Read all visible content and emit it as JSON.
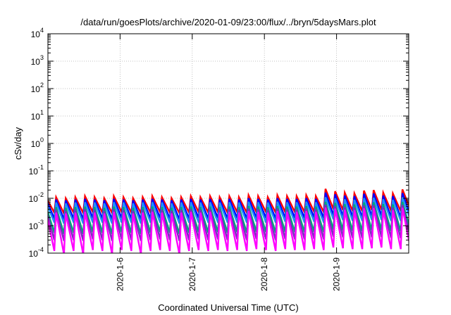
{
  "chart_data": {
    "type": "line",
    "title": "/data/run/goesPlots/archive/2020-01-09/23:00/flux/../bryn/5daysMars.plot",
    "xlabel": "Coordinated Universal Time (UTC)",
    "ylabel": "cSv/day",
    "yscale": "log",
    "ylim": [
      0.0001,
      10000
    ],
    "xlim": [
      "2020-01-05T00:00",
      "2020-01-10T00:00"
    ],
    "grid": true,
    "legend": "none",
    "y_ticks": [
      {
        "base": "10",
        "exp": "-4"
      },
      {
        "base": "10",
        "exp": "-3"
      },
      {
        "base": "10",
        "exp": "-2"
      },
      {
        "base": "10",
        "exp": "-1"
      },
      {
        "base": "10",
        "exp": "0"
      },
      {
        "base": "10",
        "exp": "1"
      },
      {
        "base": "10",
        "exp": "2"
      },
      {
        "base": "10",
        "exp": "3"
      },
      {
        "base": "10",
        "exp": "4"
      }
    ],
    "x_ticks": [
      {
        "label": "2020-1-6",
        "x": "2020-01-06T00:00"
      },
      {
        "label": "2020-1-7",
        "x": "2020-01-07T00:00"
      },
      {
        "label": "2020-1-8",
        "x": "2020-01-08T00:00"
      },
      {
        "label": "2020-1-9",
        "x": "2020-01-09T00:00"
      }
    ],
    "sawtooth_period_hours": 3.2,
    "series": [
      {
        "color": "#ff0000",
        "peaks": [
          0.01,
          0.011,
          0.01,
          0.011,
          0.012,
          0.011,
          0.01,
          0.012,
          0.011,
          0.01,
          0.011,
          0.012,
          0.011,
          0.01,
          0.011,
          0.012,
          0.011,
          0.012,
          0.011,
          0.012,
          0.011,
          0.013,
          0.012,
          0.011,
          0.013,
          0.012,
          0.012,
          0.013,
          0.012,
          0.022,
          0.018,
          0.016,
          0.015,
          0.019,
          0.02,
          0.016,
          0.015,
          0.021,
          0.017,
          0.018,
          0.016,
          0.019,
          0.018,
          0.017,
          0.02,
          0.019,
          0.017,
          0.018,
          0.021,
          0.018,
          0.02,
          0.019,
          0.018,
          0.02,
          0.019,
          0.021,
          0.02,
          0.021
        ],
        "troughs": [
          0.003,
          0.0028,
          0.003,
          0.0029,
          0.0031,
          0.003,
          0.0029,
          0.0031,
          0.003,
          0.0029,
          0.003,
          0.0031,
          0.003,
          0.0029,
          0.003,
          0.0031,
          0.003,
          0.0031,
          0.003,
          0.0031,
          0.003,
          0.0031,
          0.0031,
          0.003,
          0.0031,
          0.0031,
          0.0031,
          0.0032,
          0.0031,
          0.004,
          0.0037,
          0.0035,
          0.0034,
          0.0037,
          0.0038,
          0.0035,
          0.0034,
          0.0039,
          0.0036,
          0.0036,
          0.0035,
          0.0037,
          0.0037,
          0.0036,
          0.0038,
          0.0037,
          0.0036,
          0.0037,
          0.0039,
          0.0037,
          0.0038,
          0.0037,
          0.0037,
          0.0038,
          0.0037,
          0.0039,
          0.0038,
          0.0039
        ]
      },
      {
        "color": "#0000ff",
        "peaks": [
          0.0085,
          0.009,
          0.0085,
          0.009,
          0.0095,
          0.009,
          0.0085,
          0.0095,
          0.009,
          0.0085,
          0.009,
          0.0095,
          0.009,
          0.0085,
          0.009,
          0.0095,
          0.009,
          0.0095,
          0.009,
          0.0095,
          0.009,
          0.01,
          0.0095,
          0.009,
          0.01,
          0.0095,
          0.0095,
          0.01,
          0.0095,
          0.016,
          0.014,
          0.0125,
          0.012,
          0.0145,
          0.015,
          0.0125,
          0.012,
          0.0155,
          0.013,
          0.014,
          0.0125,
          0.0145,
          0.014,
          0.013,
          0.015,
          0.0145,
          0.013,
          0.014,
          0.0155,
          0.014,
          0.015,
          0.0145,
          0.014,
          0.015,
          0.0145,
          0.0155,
          0.015,
          0.0155
        ],
        "troughs": [
          0.0018,
          0.0017,
          0.0018,
          0.0017,
          0.0019,
          0.0018,
          0.0017,
          0.0019,
          0.0018,
          0.0017,
          0.0018,
          0.0019,
          0.0018,
          0.0017,
          0.0018,
          0.0019,
          0.0018,
          0.0019,
          0.0018,
          0.0019,
          0.0018,
          0.0019,
          0.0019,
          0.0018,
          0.0019,
          0.0019,
          0.0019,
          0.002,
          0.0019,
          0.0024,
          0.0022,
          0.0021,
          0.002,
          0.0022,
          0.0023,
          0.0021,
          0.002,
          0.0023,
          0.0021,
          0.0022,
          0.0021,
          0.0022,
          0.0022,
          0.0021,
          0.0023,
          0.0022,
          0.0021,
          0.0022,
          0.0023,
          0.0022,
          0.0023,
          0.0022,
          0.0022,
          0.0023,
          0.0022,
          0.0023,
          0.0023,
          0.0023
        ]
      },
      {
        "color": "#1e90ff",
        "peaks": [
          0.0065,
          0.007,
          0.0065,
          0.007,
          0.0072,
          0.007,
          0.0065,
          0.0072,
          0.007,
          0.0065,
          0.007,
          0.0072,
          0.007,
          0.0065,
          0.007,
          0.0072,
          0.007,
          0.0072,
          0.007,
          0.0072,
          0.007,
          0.0075,
          0.0072,
          0.007,
          0.0075,
          0.0072,
          0.0072,
          0.0075,
          0.0072,
          0.011,
          0.01,
          0.0092,
          0.0088,
          0.0102,
          0.0105,
          0.0092,
          0.0088,
          0.0108,
          0.0095,
          0.01,
          0.0092,
          0.0102,
          0.01,
          0.0095,
          0.0105,
          0.0102,
          0.0095,
          0.01,
          0.0108,
          0.01,
          0.0105,
          0.0102,
          0.01,
          0.0105,
          0.0102,
          0.0108,
          0.0105,
          0.0108
        ],
        "troughs": [
          0.0013,
          0.0012,
          0.0013,
          0.0012,
          0.0013,
          0.0013,
          0.0012,
          0.0013,
          0.0013,
          0.0012,
          0.0013,
          0.0013,
          0.0013,
          0.0012,
          0.0013,
          0.0013,
          0.0013,
          0.0013,
          0.0013,
          0.0013,
          0.0013,
          0.0014,
          0.0013,
          0.0013,
          0.0014,
          0.0013,
          0.0013,
          0.0014,
          0.0013,
          0.0017,
          0.0016,
          0.0015,
          0.0015,
          0.0016,
          0.0016,
          0.0015,
          0.0015,
          0.0017,
          0.0015,
          0.0016,
          0.0015,
          0.0016,
          0.0016,
          0.0015,
          0.0016,
          0.0016,
          0.0015,
          0.0016,
          0.0017,
          0.0016,
          0.0016,
          0.0016,
          0.0016,
          0.0016,
          0.0016,
          0.0017,
          0.0016,
          0.0017
        ]
      },
      {
        "color": "#00a878",
        "peaks": [
          0.0045,
          0.0048,
          0.0045,
          0.0048,
          0.005,
          0.0048,
          0.0045,
          0.005,
          0.0048,
          0.0045,
          0.0048,
          0.005,
          0.0048,
          0.0045,
          0.0048,
          0.005,
          0.0048,
          0.005,
          0.0048,
          0.005,
          0.0048,
          0.0052,
          0.005,
          0.0048,
          0.0052,
          0.005,
          0.005,
          0.0052,
          0.005,
          0.0075,
          0.0068,
          0.0062,
          0.006,
          0.007,
          0.0072,
          0.0062,
          0.006,
          0.0074,
          0.0065,
          0.0068,
          0.0062,
          0.007,
          0.0068,
          0.0065,
          0.0072,
          0.007,
          0.0065,
          0.0068,
          0.0074,
          0.0068,
          0.0072,
          0.007,
          0.0068,
          0.0072,
          0.007,
          0.0074,
          0.0072,
          0.0074
        ],
        "troughs": [
          0.00055,
          0.0005,
          0.00055,
          0.0005,
          0.00058,
          0.00055,
          0.0005,
          0.00058,
          0.00055,
          0.0005,
          0.00055,
          0.00058,
          0.00055,
          0.0005,
          0.00055,
          0.00058,
          0.00055,
          0.00058,
          0.00055,
          0.00058,
          0.00055,
          0.0006,
          0.00058,
          0.00055,
          0.0006,
          0.00058,
          0.00058,
          0.0006,
          0.00058,
          0.00072,
          0.00068,
          0.00065,
          0.00063,
          0.00069,
          0.0007,
          0.00065,
          0.00063,
          0.00071,
          0.00066,
          0.00068,
          0.00065,
          0.00069,
          0.00068,
          0.00066,
          0.0007,
          0.00069,
          0.00066,
          0.00068,
          0.00071,
          0.00068,
          0.0007,
          0.00069,
          0.00068,
          0.0007,
          0.00069,
          0.00071,
          0.0007,
          0.00071
        ]
      },
      {
        "color": "#7b2cbf",
        "peaks": [
          0.0035,
          0.0038,
          0.0035,
          0.0038,
          0.004,
          0.0038,
          0.0035,
          0.004,
          0.0038,
          0.0035,
          0.0038,
          0.004,
          0.0038,
          0.0035,
          0.0038,
          0.004,
          0.0038,
          0.004,
          0.0038,
          0.004,
          0.0038,
          0.0042,
          0.004,
          0.0038,
          0.0042,
          0.004,
          0.004,
          0.0042,
          0.004,
          0.0058,
          0.0052,
          0.0048,
          0.0046,
          0.0054,
          0.0056,
          0.0048,
          0.0046,
          0.0057,
          0.005,
          0.0052,
          0.0048,
          0.0054,
          0.0052,
          0.005,
          0.0056,
          0.0054,
          0.005,
          0.0052,
          0.0057,
          0.0052,
          0.0056,
          0.0054,
          0.0052,
          0.0056,
          0.0054,
          0.0057,
          0.0056,
          0.0057
        ],
        "troughs": [
          0.0003,
          0.00028,
          0.0003,
          0.00028,
          0.00032,
          0.0003,
          0.00028,
          0.00032,
          0.0003,
          0.00028,
          0.0003,
          0.00032,
          0.0003,
          0.00028,
          0.0003,
          0.00032,
          0.0003,
          0.00032,
          0.0003,
          0.00032,
          0.0003,
          0.00033,
          0.00032,
          0.0003,
          0.00033,
          0.00032,
          0.00032,
          0.00033,
          0.00032,
          0.0004,
          0.00038,
          0.00036,
          0.00035,
          0.00038,
          0.00039,
          0.00036,
          0.00035,
          0.0004,
          0.00037,
          0.00038,
          0.00036,
          0.00038,
          0.00038,
          0.00037,
          0.00039,
          0.00038,
          0.00037,
          0.00038,
          0.0004,
          0.00038,
          0.00039,
          0.00038,
          0.00038,
          0.00039,
          0.00038,
          0.0004,
          0.00039,
          0.0004
        ]
      },
      {
        "color": "#ff00ff",
        "peaks": [
          0.0028,
          0.003,
          0.0028,
          0.003,
          0.0032,
          0.003,
          0.0028,
          0.0032,
          0.003,
          0.0028,
          0.003,
          0.0032,
          0.003,
          0.0028,
          0.003,
          0.0032,
          0.003,
          0.0032,
          0.003,
          0.0032,
          0.003,
          0.0034,
          0.0032,
          0.003,
          0.0034,
          0.0032,
          0.0032,
          0.0034,
          0.0032,
          0.0046,
          0.0042,
          0.0038,
          0.0037,
          0.0043,
          0.0044,
          0.0038,
          0.0037,
          0.0045,
          0.004,
          0.0042,
          0.0038,
          0.0043,
          0.0042,
          0.004,
          0.0044,
          0.0043,
          0.004,
          0.0042,
          0.0045,
          0.0042,
          0.0044,
          0.0043,
          0.0042,
          0.0044,
          0.0043,
          0.0045,
          0.0044,
          0.0045
        ],
        "troughs": [
          0.00012,
          9e-05,
          0.00012,
          9e-05,
          0.00013,
          0.00012,
          9e-05,
          0.00013,
          0.00012,
          9e-05,
          0.00012,
          0.00013,
          0.00012,
          9e-05,
          0.00012,
          0.00013,
          0.00012,
          0.00013,
          0.00012,
          0.00013,
          0.00012,
          0.00014,
          0.00013,
          0.00012,
          0.00014,
          0.00013,
          0.00013,
          0.00014,
          0.00013,
          0.00016,
          0.00015,
          0.00014,
          0.00014,
          0.00015,
          0.00016,
          0.00014,
          0.00014,
          0.00016,
          0.00015,
          0.00015,
          0.00014,
          0.00015,
          0.00015,
          0.00015,
          0.00016,
          0.00015,
          0.00015,
          0.00015,
          0.00016,
          0.00015,
          0.00016,
          0.00015,
          0.00015,
          0.00016,
          0.00015,
          0.00016,
          0.00016,
          0.00016
        ]
      }
    ]
  }
}
